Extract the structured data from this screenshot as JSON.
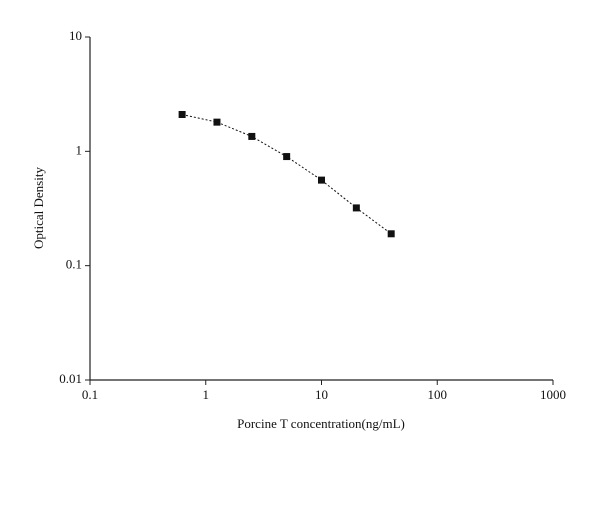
{
  "chart_data": {
    "type": "line",
    "x_label": "Porcine T concentration(ng/mL)",
    "y_label": "Optical Density",
    "x": [
      0.625,
      1.25,
      2.5,
      5,
      10,
      20,
      40
    ],
    "series": [
      {
        "color": "#111111",
        "values": [
          2.1,
          1.8,
          1.35,
          0.9,
          0.56,
          0.32,
          0.19
        ]
      }
    ],
    "xlim": [
      0.1,
      1000
    ],
    "xticks": [
      0.1,
      1,
      10,
      100,
      1000
    ],
    "ylim": [
      0.01,
      10
    ],
    "yticks": [
      0.01,
      0.1,
      1,
      10
    ],
    "xscale": "log",
    "yscale": "log",
    "grid": false
  }
}
